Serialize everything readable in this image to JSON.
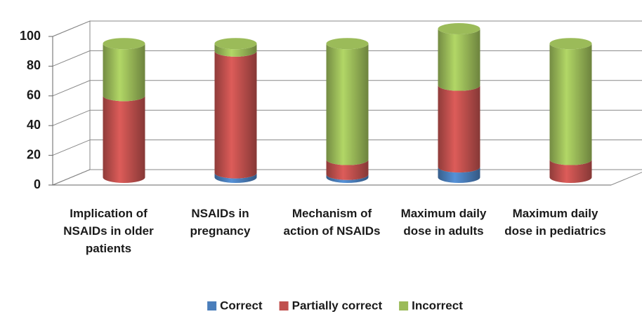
{
  "chart_data": {
    "type": "bar",
    "stacked": true,
    "style": "3d-cylinder",
    "categories": [
      "Implication of NSAIDs in older patients",
      "NSAIDs in pregnancy",
      "Mechanism of action of NSAIDs",
      "Maximum daily dose in adults",
      "Maximum daily dose in pediatrics"
    ],
    "series": [
      {
        "name": "Correct",
        "color": "#4a7ebb",
        "values": [
          0,
          3,
          2,
          7,
          0
        ]
      },
      {
        "name": "Partially correct",
        "color": "#c0504d",
        "values": [
          55,
          82,
          10,
          55,
          12
        ]
      },
      {
        "name": "Incorrect",
        "color": "#9bbb59",
        "values": [
          35,
          5,
          78,
          38,
          78
        ]
      }
    ],
    "ylim": [
      0,
      100
    ],
    "yticks": [
      0,
      20,
      40,
      60,
      80,
      100
    ],
    "grid": true,
    "legend": "bottom"
  }
}
